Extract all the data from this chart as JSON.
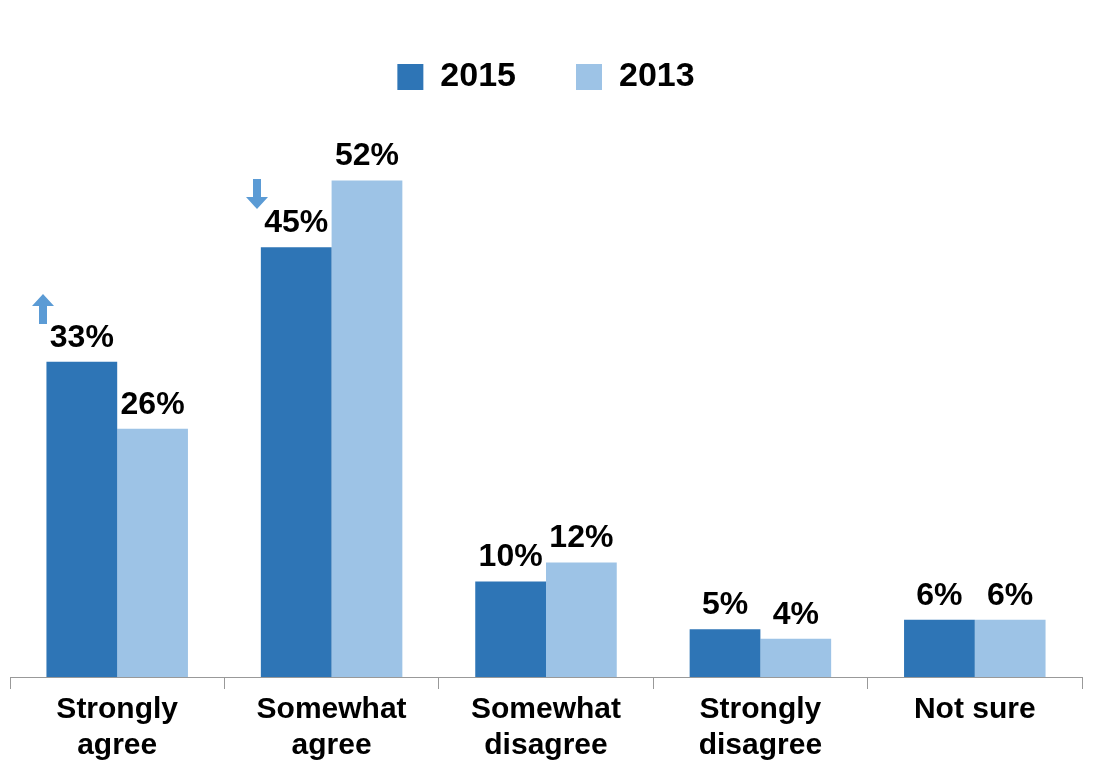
{
  "chart_data": {
    "type": "bar",
    "categories": [
      "Strongly\nagree",
      "Somewhat\nagree",
      "Somewhat\ndisagree",
      "Strongly\ndisagree",
      "Not sure"
    ],
    "series": [
      {
        "name": "2015",
        "color": "#2e75b6",
        "values": [
          33,
          45,
          10,
          5,
          6
        ],
        "value_labels": [
          "33%",
          "45%",
          "10%",
          "5%",
          "6%"
        ]
      },
      {
        "name": "2013",
        "color": "#9dc3e6",
        "values": [
          26,
          52,
          12,
          4,
          6
        ],
        "value_labels": [
          "26%",
          "52%",
          "12%",
          "4%",
          "6%"
        ]
      }
    ],
    "legend": "top",
    "grid": false
  }
}
